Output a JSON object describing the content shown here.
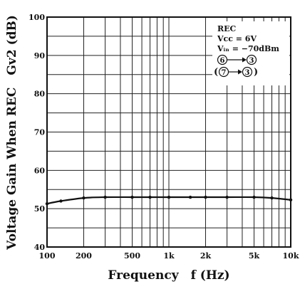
{
  "chart_data": {
    "type": "line",
    "xlabel": "Frequency　f (Hz)",
    "ylabel": "Voltage Gain When REC　Gv2 (dB)",
    "x_scale": "log",
    "xlim": [
      100,
      10000
    ],
    "ylim": [
      40,
      100
    ],
    "x_ticks": [
      {
        "value": 100,
        "label": "100"
      },
      {
        "value": 200,
        "label": "200"
      },
      {
        "value": 500,
        "label": "500"
      },
      {
        "value": 1000,
        "label": "1k"
      },
      {
        "value": 2000,
        "label": "2k"
      },
      {
        "value": 5000,
        "label": "5k"
      },
      {
        "value": 10000,
        "label": "10k"
      }
    ],
    "y_ticks": [
      {
        "value": 40,
        "label": "40"
      },
      {
        "value": 50,
        "label": "50"
      },
      {
        "value": 60,
        "label": "60"
      },
      {
        "value": 70,
        "label": "70"
      },
      {
        "value": 80,
        "label": "80"
      },
      {
        "value": 90,
        "label": "90"
      },
      {
        "value": 100,
        "label": "100"
      }
    ],
    "grid": true,
    "series": [
      {
        "x": [
          100,
          130,
          200,
          300,
          500,
          700,
          1000,
          1500,
          2000,
          3000,
          5000,
          7000,
          10000
        ],
        "y": [
          51.3,
          52.0,
          52.8,
          53.0,
          53.0,
          53.0,
          53.0,
          53.0,
          53.0,
          53.0,
          53.0,
          52.8,
          52.3
        ]
      }
    ],
    "annotation": {
      "mode": "REC",
      "vcc": "Vcc = 6V",
      "vin": "Vᵢₙ = −70dBm",
      "path1_from": "6",
      "path1_to": "3",
      "path2_from": "7",
      "path2_to": "3"
    },
    "legend_position": "top-right"
  },
  "colors": {
    "ink": "#111111",
    "background": "#ffffff"
  }
}
